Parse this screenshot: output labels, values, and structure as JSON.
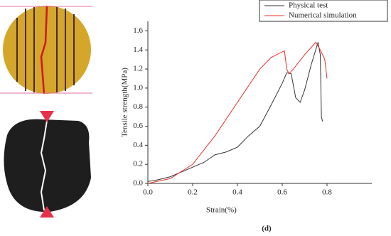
{
  "chart_data": {
    "type": "line",
    "caption": "(d)",
    "x_label": "Strain(%)",
    "y_label": "Tensile strength(MPa)",
    "xlim": [
      0,
      1.0
    ],
    "ylim": [
      0,
      1.7
    ],
    "xticks": [
      {
        "value": 0,
        "label": "0.0"
      },
      0.2,
      0.4,
      0.6,
      0.8
    ],
    "yticks": [
      {
        "value": 0,
        "label": "0.0"
      },
      0.2,
      0.4,
      0.6,
      0.8,
      {
        "value": 1,
        "label": "1.0"
      },
      1.2,
      1.4,
      1.6
    ],
    "legend": "top-right",
    "series": [
      {
        "name": "Physical test",
        "color": "#333333",
        "x": [
          0,
          0.05,
          0.1,
          0.15,
          0.2,
          0.25,
          0.3,
          0.35,
          0.4,
          0.45,
          0.5,
          0.55,
          0.6,
          0.62,
          0.64,
          0.66,
          0.68,
          0.7,
          0.73,
          0.76,
          0.77,
          0.775,
          0.78
        ],
        "values": [
          0.02,
          0.04,
          0.07,
          0.12,
          0.17,
          0.22,
          0.3,
          0.33,
          0.38,
          0.5,
          0.6,
          0.82,
          1.05,
          1.16,
          1.15,
          0.9,
          0.85,
          0.98,
          1.25,
          1.48,
          1.35,
          0.7,
          0.65
        ]
      },
      {
        "name": "Numerical simulation",
        "color": "#e8302a",
        "x": [
          0,
          0.1,
          0.2,
          0.3,
          0.4,
          0.5,
          0.55,
          0.6,
          0.61,
          0.62,
          0.63,
          0.65,
          0.7,
          0.75,
          0.77,
          0.79,
          0.8
        ],
        "values": [
          0,
          0.05,
          0.2,
          0.5,
          0.85,
          1.2,
          1.32,
          1.38,
          1.39,
          1.2,
          1.15,
          1.2,
          1.35,
          1.48,
          1.4,
          1.3,
          1.1
        ]
      }
    ]
  }
}
